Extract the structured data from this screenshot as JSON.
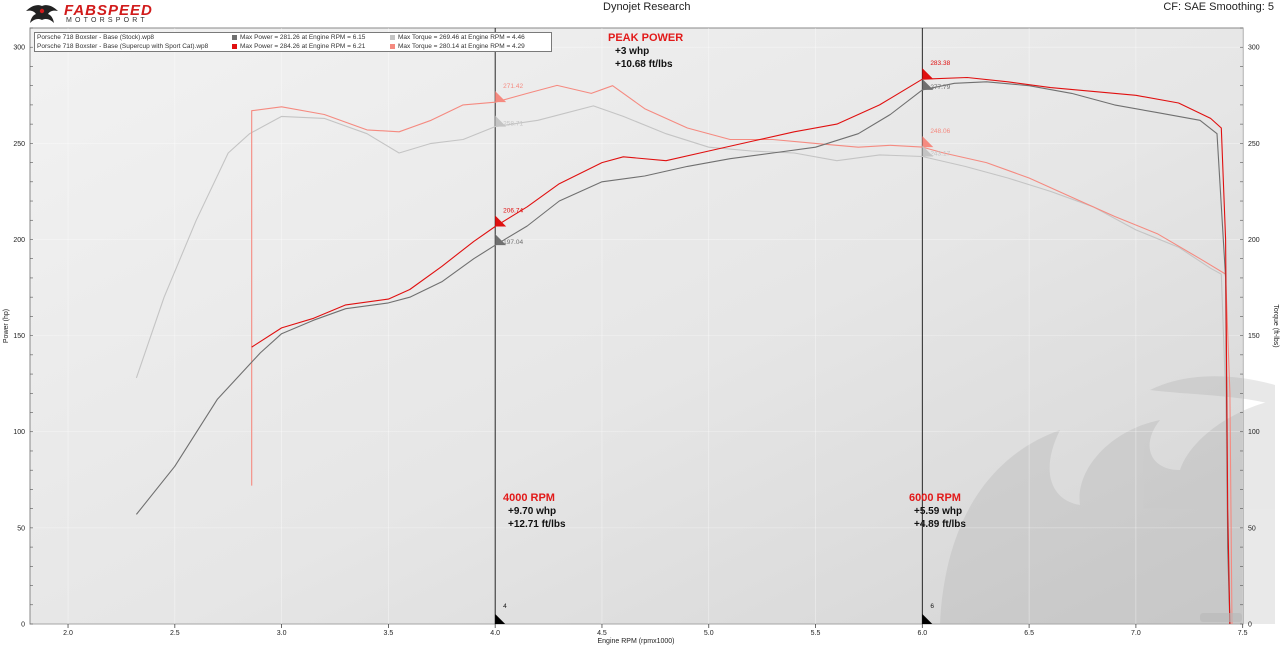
{
  "header": {
    "logo_word": "FABSPEED",
    "logo_sub": "MOTORSPORT",
    "title": "Dynojet Research",
    "settings": "CF: SAE Smoothing: 5"
  },
  "legend": {
    "runs": [
      {
        "name": "Porsche 718 Boxster - Base (Stock).wp8",
        "power_label": "Max Power = 281.26 at Engine RPM = 6.15",
        "torque_label": "Max Torque = 269.46 at Engine RPM = 4.46",
        "power_color": "#707070",
        "torque_color": "#c4c4c4"
      },
      {
        "name": "Porsche 718 Boxster - Base (Supercup with Sport Cat).wp8",
        "power_label": "Max Power = 284.26 at Engine RPM = 6.21",
        "torque_label": "Max Torque = 280.14 at Engine RPM = 4.29",
        "power_color": "#e01010",
        "torque_color": "#f58a80"
      }
    ]
  },
  "annotations": {
    "peak": {
      "title": "PEAK POWER",
      "line1": "+3 whp",
      "line2": "+10.68 ft/lbs"
    },
    "rpm4000": {
      "title": "4000 RPM",
      "line1": "+9.70 whp",
      "line2": "+12.71 ft/lbs"
    },
    "rpm6000": {
      "title": "6000 RPM",
      "line1": "+5.59 whp",
      "line2": "+4.89 ft/lbs"
    }
  },
  "chart_data": {
    "type": "line",
    "xlabel": "Engine RPM (rpmx1000)",
    "ylabel": "Power (hp)",
    "y2label": "Torque (ft-lbs)",
    "xlim": [
      1.85,
      7.45
    ],
    "ylim": [
      0,
      310
    ],
    "xticks": [
      "2.0",
      "2.5",
      "3.0",
      "3.5",
      "4.0",
      "4.5",
      "5.0",
      "5.5",
      "6.0",
      "6.5",
      "7.0",
      "7.5"
    ],
    "yticks": [
      "0",
      "50",
      "100",
      "150",
      "200",
      "250",
      "300"
    ],
    "cursors": [
      {
        "x": 4.0,
        "label": "4"
      },
      {
        "x": 6.0,
        "label": "6"
      }
    ],
    "markers": [
      {
        "series": "mod_power",
        "x": 4.0,
        "y": 206.74,
        "label": "206.74"
      },
      {
        "series": "stock_power",
        "x": 4.0,
        "y": 197.04,
        "label": "197.04"
      },
      {
        "series": "mod_torque",
        "x": 4.0,
        "y": 271.42,
        "label": "271.42"
      },
      {
        "series": "stock_torque",
        "x": 4.0,
        "y": 258.71,
        "label": "258.71"
      },
      {
        "series": "mod_power",
        "x": 6.0,
        "y": 283.38,
        "label": "283.38"
      },
      {
        "series": "stock_power",
        "x": 6.0,
        "y": 277.79,
        "label": "277.79"
      },
      {
        "series": "mod_torque",
        "x": 6.0,
        "y": 248.06,
        "label": "248.06"
      },
      {
        "series": "stock_torque",
        "x": 6.0,
        "y": 243.17,
        "label": "243.17"
      }
    ],
    "series": [
      {
        "id": "stock_torque",
        "color": "#c4c4c4",
        "points": [
          [
            2.32,
            128
          ],
          [
            2.45,
            170
          ],
          [
            2.6,
            210
          ],
          [
            2.75,
            245
          ],
          [
            2.85,
            255
          ],
          [
            3.0,
            264
          ],
          [
            3.2,
            263
          ],
          [
            3.4,
            255
          ],
          [
            3.55,
            245
          ],
          [
            3.7,
            250
          ],
          [
            3.85,
            252
          ],
          [
            4.0,
            258.71
          ],
          [
            4.2,
            262
          ],
          [
            4.46,
            269.46
          ],
          [
            4.6,
            264
          ],
          [
            4.8,
            255
          ],
          [
            5.0,
            248
          ],
          [
            5.2,
            246
          ],
          [
            5.4,
            245
          ],
          [
            5.6,
            241
          ],
          [
            5.8,
            244
          ],
          [
            6.0,
            243.17
          ],
          [
            6.2,
            238
          ],
          [
            6.4,
            232
          ],
          [
            6.6,
            225
          ],
          [
            6.8,
            217
          ],
          [
            7.0,
            205
          ],
          [
            7.2,
            196
          ],
          [
            7.35,
            185
          ],
          [
            7.4,
            182
          ],
          [
            7.42,
            120
          ],
          [
            7.43,
            40
          ],
          [
            7.44,
            0
          ]
        ]
      },
      {
        "id": "mod_torque",
        "color": "#f58a80",
        "points": [
          [
            2.86,
            72
          ],
          [
            2.86,
            267
          ],
          [
            3.0,
            269
          ],
          [
            3.2,
            265
          ],
          [
            3.4,
            257
          ],
          [
            3.55,
            256
          ],
          [
            3.7,
            262
          ],
          [
            3.85,
            270
          ],
          [
            4.0,
            271.42
          ],
          [
            4.15,
            276
          ],
          [
            4.29,
            280.14
          ],
          [
            4.45,
            276
          ],
          [
            4.55,
            280
          ],
          [
            4.7,
            268
          ],
          [
            4.9,
            258
          ],
          [
            5.1,
            252
          ],
          [
            5.3,
            252
          ],
          [
            5.5,
            250
          ],
          [
            5.7,
            248
          ],
          [
            5.85,
            249
          ],
          [
            6.0,
            248.06
          ],
          [
            6.1,
            245
          ],
          [
            6.3,
            240
          ],
          [
            6.5,
            232
          ],
          [
            6.7,
            222
          ],
          [
            6.9,
            212
          ],
          [
            7.1,
            203
          ],
          [
            7.3,
            190
          ],
          [
            7.42,
            182
          ],
          [
            7.44,
            120
          ],
          [
            7.45,
            0
          ]
        ]
      },
      {
        "id": "stock_power",
        "color": "#707070",
        "points": [
          [
            2.32,
            57
          ],
          [
            2.5,
            82
          ],
          [
            2.7,
            117
          ],
          [
            2.9,
            141
          ],
          [
            3.0,
            151
          ],
          [
            3.15,
            158
          ],
          [
            3.3,
            164
          ],
          [
            3.5,
            167
          ],
          [
            3.6,
            170
          ],
          [
            3.75,
            178
          ],
          [
            3.9,
            190
          ],
          [
            4.0,
            197.04
          ],
          [
            4.15,
            207
          ],
          [
            4.3,
            220
          ],
          [
            4.5,
            230
          ],
          [
            4.7,
            233
          ],
          [
            4.9,
            238
          ],
          [
            5.1,
            242
          ],
          [
            5.3,
            245
          ],
          [
            5.5,
            248
          ],
          [
            5.7,
            255
          ],
          [
            5.85,
            265
          ],
          [
            6.0,
            277.79
          ],
          [
            6.15,
            281.26
          ],
          [
            6.3,
            282
          ],
          [
            6.5,
            280
          ],
          [
            6.7,
            276
          ],
          [
            6.9,
            270
          ],
          [
            7.1,
            266
          ],
          [
            7.3,
            262
          ],
          [
            7.38,
            255
          ],
          [
            7.42,
            180
          ],
          [
            7.43,
            40
          ],
          [
            7.44,
            0
          ]
        ]
      },
      {
        "id": "mod_power",
        "color": "#e01010",
        "points": [
          [
            2.86,
            144
          ],
          [
            3.0,
            154
          ],
          [
            3.15,
            159
          ],
          [
            3.3,
            166
          ],
          [
            3.5,
            169
          ],
          [
            3.6,
            174
          ],
          [
            3.75,
            186
          ],
          [
            3.9,
            199
          ],
          [
            4.0,
            206.74
          ],
          [
            4.15,
            217
          ],
          [
            4.3,
            229
          ],
          [
            4.5,
            240
          ],
          [
            4.6,
            243
          ],
          [
            4.8,
            241
          ],
          [
            5.0,
            246
          ],
          [
            5.2,
            251
          ],
          [
            5.4,
            256
          ],
          [
            5.6,
            260
          ],
          [
            5.8,
            270
          ],
          [
            6.0,
            283.38
          ],
          [
            6.21,
            284.26
          ],
          [
            6.4,
            282
          ],
          [
            6.6,
            279
          ],
          [
            6.8,
            277
          ],
          [
            7.0,
            275
          ],
          [
            7.2,
            271
          ],
          [
            7.35,
            263
          ],
          [
            7.4,
            258
          ],
          [
            7.42,
            200
          ],
          [
            7.43,
            60
          ],
          [
            7.44,
            0
          ]
        ]
      }
    ]
  }
}
